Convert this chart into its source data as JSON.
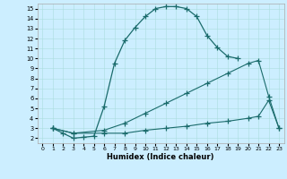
{
  "xlabel": "Humidex (Indice chaleur)",
  "xlim": [
    -0.5,
    23.5
  ],
  "ylim": [
    1.5,
    15.5
  ],
  "xticks": [
    0,
    1,
    2,
    3,
    4,
    5,
    6,
    7,
    8,
    9,
    10,
    11,
    12,
    13,
    14,
    15,
    16,
    17,
    18,
    19,
    20,
    21,
    22,
    23
  ],
  "yticks": [
    2,
    3,
    4,
    5,
    6,
    7,
    8,
    9,
    10,
    11,
    12,
    13,
    14,
    15
  ],
  "bg_color": "#cceeff",
  "line_color": "#1a6b6b",
  "line1_x": [
    1,
    2,
    3,
    4,
    5,
    6,
    7,
    8,
    9,
    10,
    11,
    12,
    13,
    14,
    15,
    16,
    17,
    18,
    19
  ],
  "line1_y": [
    3,
    2.5,
    2,
    2.1,
    2.2,
    5.2,
    9.5,
    11.8,
    13.1,
    14.2,
    15,
    15.2,
    15.2,
    15,
    14.2,
    12.3,
    11.1,
    10.2,
    10
  ],
  "line2_x": [
    1,
    3,
    6,
    8,
    10,
    12,
    14,
    16,
    18,
    20,
    21,
    22,
    23
  ],
  "line2_y": [
    3,
    2.5,
    2.8,
    3.5,
    4.5,
    5.5,
    6.5,
    7.5,
    8.5,
    9.5,
    9.8,
    6.2,
    3
  ],
  "line3_x": [
    1,
    3,
    6,
    8,
    10,
    12,
    14,
    16,
    18,
    20,
    21,
    22,
    23
  ],
  "line3_y": [
    3,
    2.5,
    2.5,
    2.5,
    2.8,
    3.0,
    3.2,
    3.5,
    3.7,
    4.0,
    4.2,
    5.8,
    3
  ]
}
